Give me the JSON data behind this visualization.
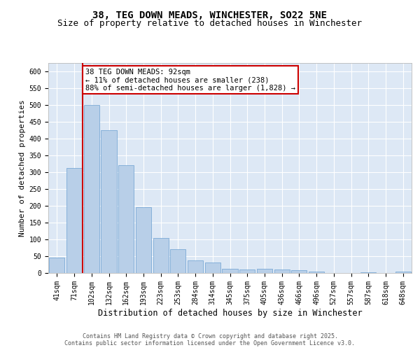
{
  "title_line1": "38, TEG DOWN MEADS, WINCHESTER, SO22 5NE",
  "title_line2": "Size of property relative to detached houses in Winchester",
  "xlabel": "Distribution of detached houses by size in Winchester",
  "ylabel": "Number of detached properties",
  "bar_color": "#b8cfe8",
  "bar_edge_color": "#6a9fd0",
  "background_color": "#dde8f5",
  "grid_color": "#ffffff",
  "categories": [
    "41sqm",
    "71sqm",
    "102sqm",
    "132sqm",
    "162sqm",
    "193sqm",
    "223sqm",
    "253sqm",
    "284sqm",
    "314sqm",
    "345sqm",
    "375sqm",
    "405sqm",
    "436sqm",
    "466sqm",
    "496sqm",
    "527sqm",
    "557sqm",
    "587sqm",
    "618sqm",
    "648sqm"
  ],
  "values": [
    45,
    313,
    500,
    424,
    320,
    195,
    104,
    70,
    37,
    32,
    13,
    11,
    13,
    10,
    8,
    5,
    0,
    0,
    3,
    0,
    4
  ],
  "highlight_color": "#cc0000",
  "vline_index": 1.5,
  "annotation_text": "38 TEG DOWN MEADS: 92sqm\n← 11% of detached houses are smaller (238)\n88% of semi-detached houses are larger (1,828) →",
  "annotation_box_color": "#ffffff",
  "annotation_box_edge": "#cc0000",
  "ylim": [
    0,
    625
  ],
  "yticks": [
    0,
    50,
    100,
    150,
    200,
    250,
    300,
    350,
    400,
    450,
    500,
    550,
    600
  ],
  "footer_text": "Contains HM Land Registry data © Crown copyright and database right 2025.\nContains public sector information licensed under the Open Government Licence v3.0.",
  "title_fontsize": 10,
  "subtitle_fontsize": 9,
  "tick_fontsize": 7,
  "xlabel_fontsize": 8.5,
  "ylabel_fontsize": 8,
  "annot_fontsize": 7.5,
  "footer_fontsize": 6
}
